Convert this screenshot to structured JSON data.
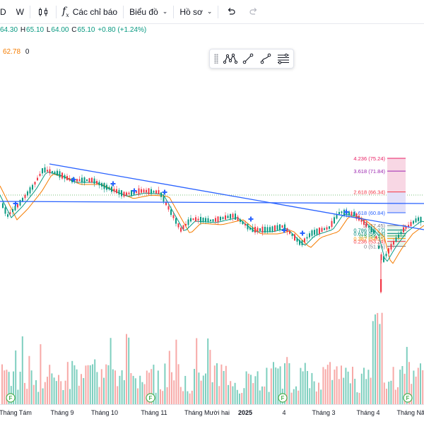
{
  "toolbar": {
    "interval": "W",
    "indicators_label": "Các chỉ báo",
    "chart_type_label": "Biểu đồ",
    "profile_label": "Hồ sơ"
  },
  "legend": {
    "open_partial": "64.30",
    "high_label": "H",
    "high": "65.10",
    "low_label": "L",
    "low": "64.00",
    "close_label": "C",
    "close": "65.10",
    "change": "+0.80 (+1.24%)",
    "ma_value": "62.78",
    "ma_extra": "0"
  },
  "colors": {
    "up": "#089981",
    "down": "#f23645",
    "trend_line": "#2962ff",
    "ma_fast": "#089981",
    "ma_slow": "#f57c00",
    "volume_up": "#7ecfbf",
    "volume_down": "#f7a9a7"
  },
  "fib_levels": [
    {
      "label": "4.236 (75.24)",
      "color": "#e91e63",
      "value": 75.24
    },
    {
      "label": "3.618 (71.84)",
      "color": "#9c27b0",
      "value": 71.84
    },
    {
      "label": "2.618 (66.34)",
      "color": "#f23645",
      "value": 66.34
    },
    {
      "label": "1.618 (60.84)",
      "color": "#2962ff",
      "value": 60.84
    },
    {
      "label": "1 (57.45)",
      "color": "#787b86",
      "value": 57.45
    },
    {
      "label": "0.786 (56.27)",
      "color": "#00897b",
      "value": 56.27
    },
    {
      "label": "0.618 (55.34)",
      "color": "#00897b",
      "value": 55.34
    },
    {
      "label": "0.5 (54.70)",
      "color": "#4caf50",
      "value": 54.7
    },
    {
      "label": "0.382 (54.05)",
      "color": "#ff9800",
      "value": 54.05
    },
    {
      "label": "0.236 (53.24)",
      "color": "#f23645",
      "value": 53.24
    },
    {
      "label": "0 (51.95)",
      "color": "#787b86",
      "value": 51.95
    }
  ],
  "x_axis": [
    {
      "label": "Tháng Tám",
      "bold": false
    },
    {
      "label": "Tháng 9",
      "bold": false
    },
    {
      "label": "Tháng 10",
      "bold": false
    },
    {
      "label": "Tháng 11",
      "bold": false
    },
    {
      "label": "Tháng Mười hai",
      "bold": false
    },
    {
      "label": "2025",
      "bold": true
    },
    {
      "label": "4",
      "bold": false
    },
    {
      "label": "Tháng 3",
      "bold": false
    },
    {
      "label": "Tháng 4",
      "bold": false
    },
    {
      "label": "Tháng Năm",
      "bold": false
    }
  ],
  "event_marker_text": "F"
}
